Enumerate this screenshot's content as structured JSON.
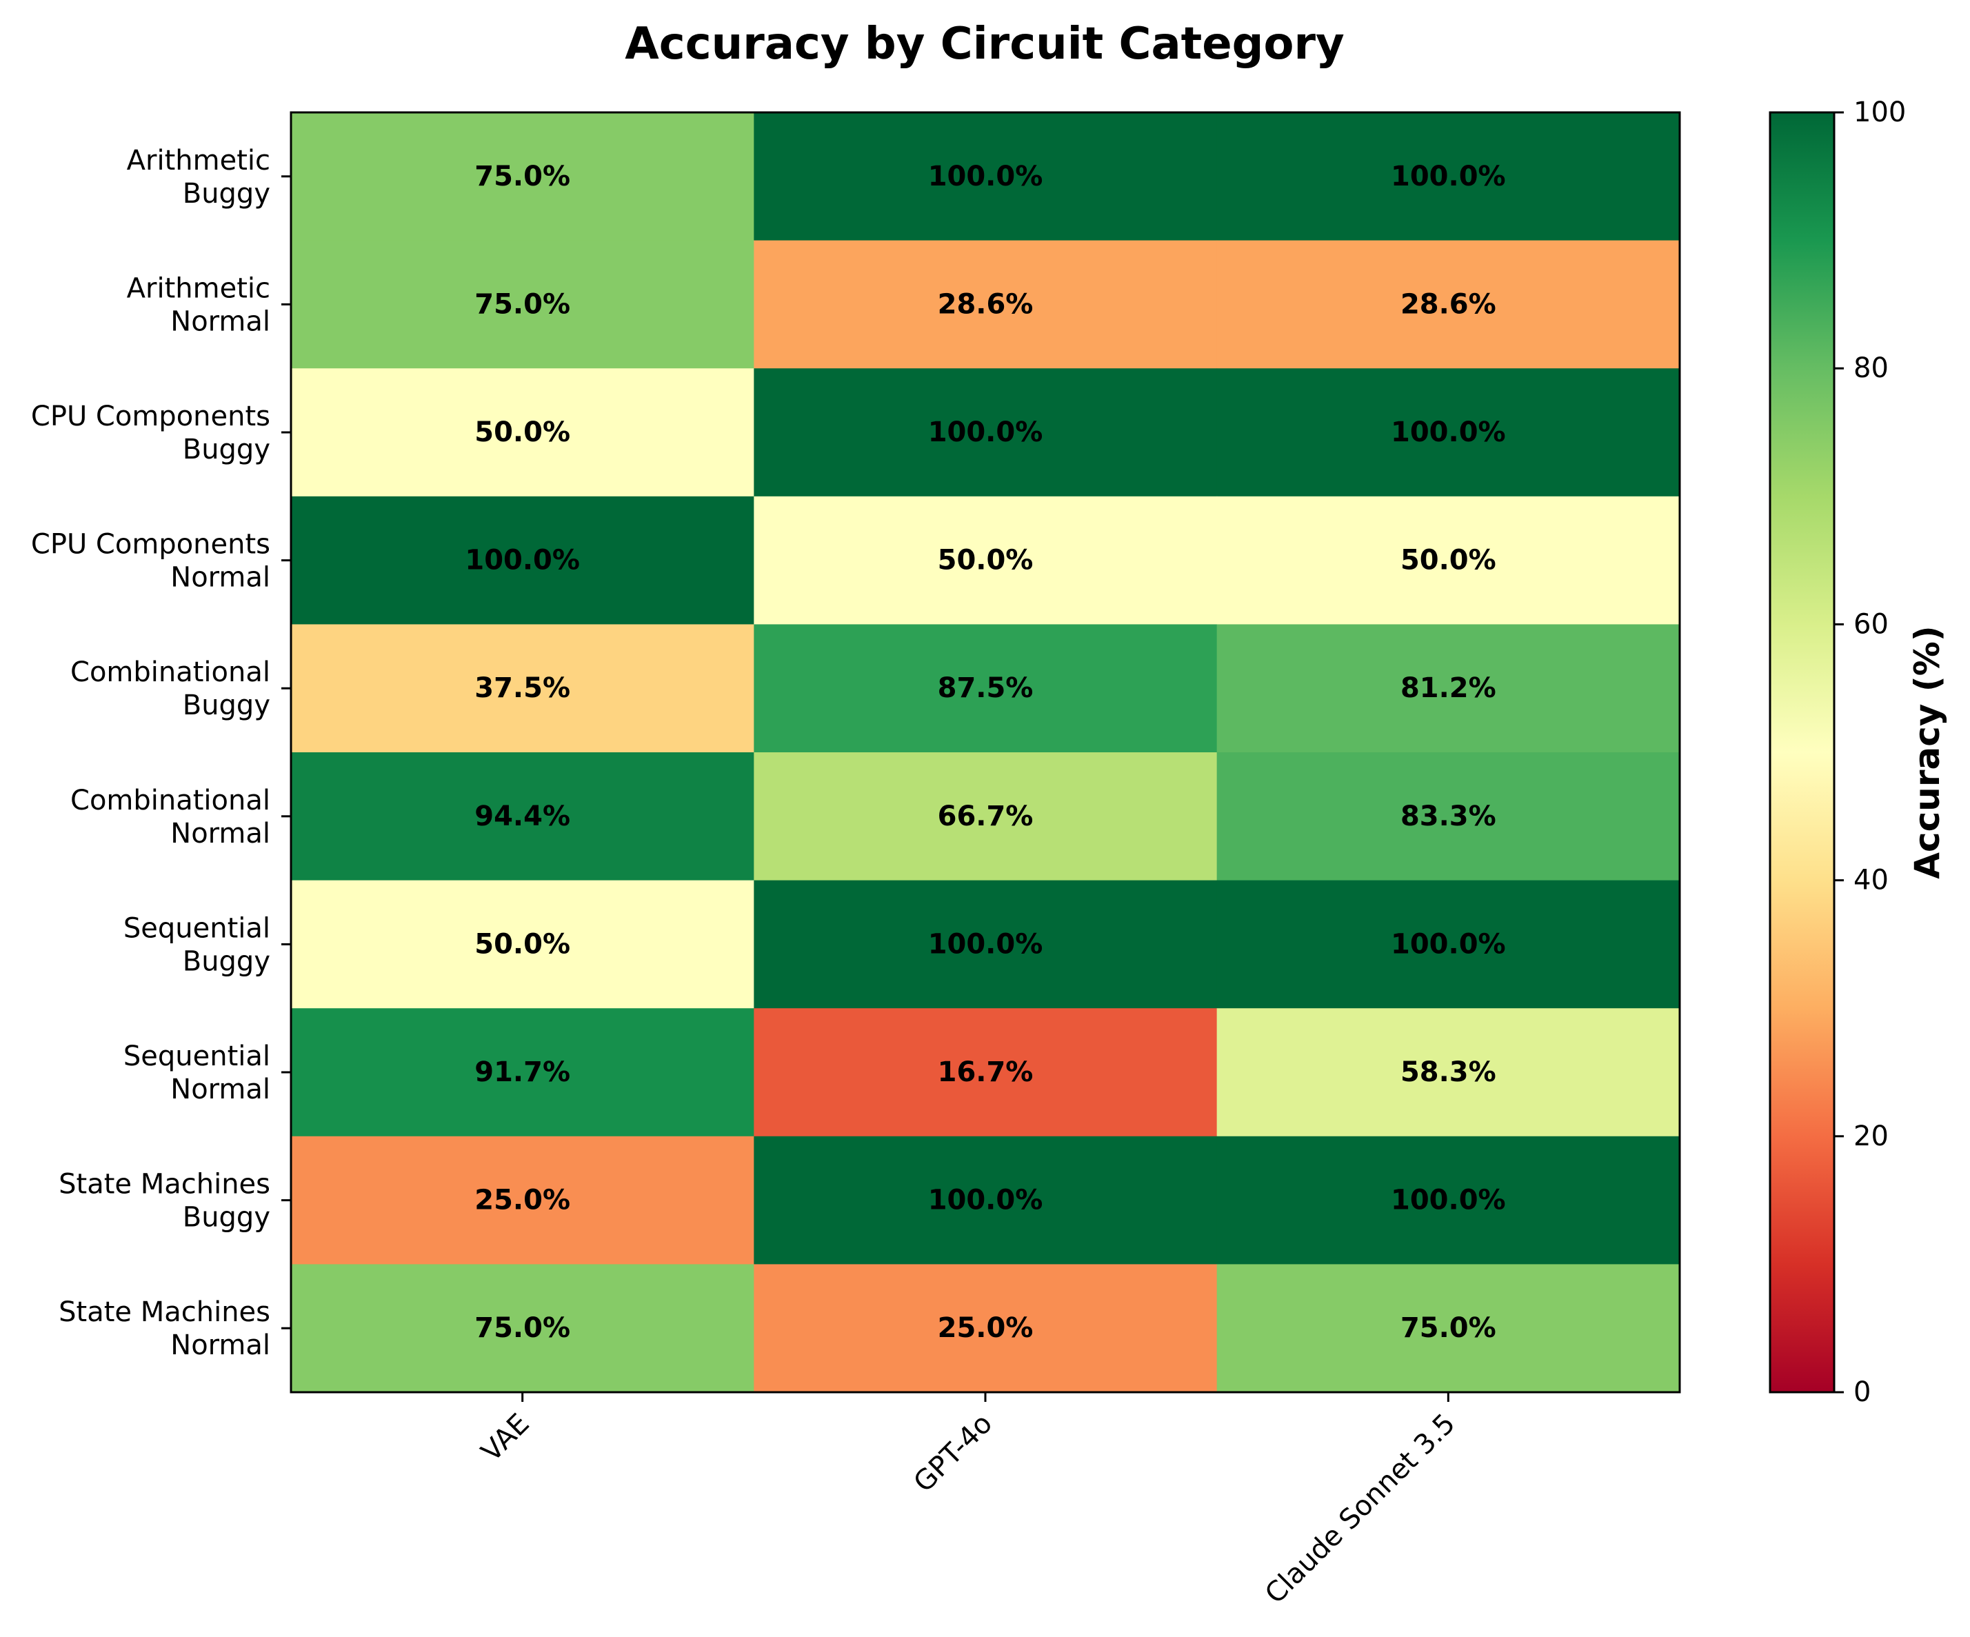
{
  "chart_data": {
    "type": "heatmap",
    "title": "Accuracy by Circuit Category",
    "rows": [
      "Arithmetic\nBuggy",
      "Arithmetic\nNormal",
      "CPU Components\nBuggy",
      "CPU Components\nNormal",
      "Combinational\nBuggy",
      "Combinational\nNormal",
      "Sequential\nBuggy",
      "Sequential\nNormal",
      "State Machines\nBuggy",
      "State Machines\nNormal"
    ],
    "columns": [
      "VAE",
      "GPT-4o",
      "Claude Sonnet 3.5"
    ],
    "values": [
      [
        75.0,
        100.0,
        100.0
      ],
      [
        75.0,
        28.6,
        28.6
      ],
      [
        50.0,
        100.0,
        100.0
      ],
      [
        100.0,
        50.0,
        50.0
      ],
      [
        37.5,
        87.5,
        81.2
      ],
      [
        94.4,
        66.7,
        83.3
      ],
      [
        50.0,
        100.0,
        100.0
      ],
      [
        91.7,
        16.7,
        58.3
      ],
      [
        25.0,
        100.0,
        100.0
      ],
      [
        75.0,
        25.0,
        75.0
      ]
    ],
    "value_suffix": "%",
    "colorbar": {
      "label": "Accuracy (%)",
      "range": [
        0,
        100
      ],
      "ticks": [
        0,
        20,
        40,
        60,
        80,
        100
      ],
      "colormap": "RdYlGn"
    }
  }
}
